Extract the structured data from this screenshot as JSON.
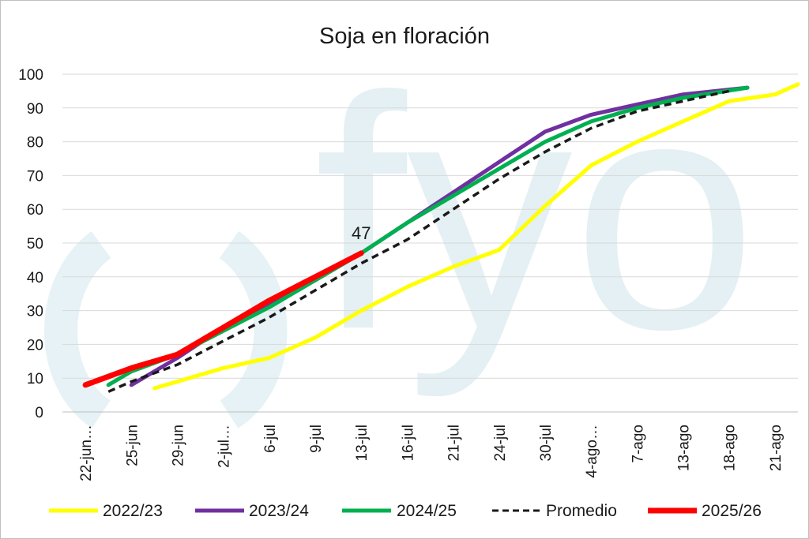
{
  "chart_data": {
    "type": "line",
    "title": "Soja en floración",
    "categories": [
      "22-jun…",
      "25-jun",
      "29-jun",
      "2-jul…",
      "6-jul",
      "9-jul",
      "13-jul",
      "16-jul",
      "21-jul",
      "24-jul",
      "30-jul",
      "4-ago…",
      "7-ago",
      "13-ago",
      "18-ago",
      "21-ago"
    ],
    "ylim": [
      0,
      100
    ],
    "yticks": [
      0,
      10,
      20,
      30,
      40,
      50,
      60,
      70,
      80,
      90,
      100
    ],
    "grid": "horizontal",
    "legend_position": "bottom",
    "watermark": "fyo",
    "series": [
      {
        "name": "2022/23",
        "color": "#FFFF00",
        "style": "solid",
        "points": [
          [
            1.5,
            7
          ],
          [
            2,
            9
          ],
          [
            3,
            13
          ],
          [
            4,
            16
          ],
          [
            5,
            22
          ],
          [
            6,
            30
          ],
          [
            7,
            37
          ],
          [
            8,
            43
          ],
          [
            9,
            48
          ],
          [
            10,
            61
          ],
          [
            11,
            73
          ],
          [
            12,
            80
          ],
          [
            13,
            86
          ],
          [
            14,
            92
          ],
          [
            15,
            94
          ],
          [
            15.5,
            97
          ]
        ]
      },
      {
        "name": "2023/24",
        "color": "#7030A0",
        "style": "solid",
        "points": [
          [
            1,
            8
          ],
          [
            2,
            16
          ],
          [
            3,
            25
          ],
          [
            4,
            32
          ],
          [
            5,
            39
          ],
          [
            6,
            47
          ],
          [
            7,
            56
          ],
          [
            8,
            65
          ],
          [
            9,
            74
          ],
          [
            10,
            83
          ],
          [
            11,
            88
          ],
          [
            12,
            91
          ],
          [
            13,
            94
          ],
          [
            14.4,
            96
          ]
        ]
      },
      {
        "name": "2024/25",
        "color": "#00B050",
        "style": "solid",
        "points": [
          [
            0.5,
            8
          ],
          [
            1,
            12
          ],
          [
            2,
            17
          ],
          [
            3,
            24
          ],
          [
            4,
            31
          ],
          [
            5,
            39
          ],
          [
            6,
            47
          ],
          [
            7,
            56
          ],
          [
            8,
            64
          ],
          [
            9,
            72
          ],
          [
            10,
            80
          ],
          [
            11,
            86
          ],
          [
            12,
            90
          ],
          [
            13,
            93
          ],
          [
            14.4,
            96
          ]
        ]
      },
      {
        "name": "Promedio",
        "color": "#1a1a1a",
        "style": "dashed",
        "points": [
          [
            0.5,
            6
          ],
          [
            1,
            9
          ],
          [
            2,
            14
          ],
          [
            3,
            21
          ],
          [
            4,
            28
          ],
          [
            5,
            36
          ],
          [
            6,
            44
          ],
          [
            7,
            51
          ],
          [
            8,
            60
          ],
          [
            9,
            69
          ],
          [
            10,
            77
          ],
          [
            11,
            84
          ],
          [
            12,
            89
          ],
          [
            13,
            92
          ],
          [
            14,
            95
          ]
        ]
      },
      {
        "name": "2025/26",
        "color": "#FF0000",
        "style": "solid",
        "points": [
          [
            0,
            8
          ],
          [
            1,
            13
          ],
          [
            2,
            17
          ],
          [
            3,
            25
          ],
          [
            4,
            33
          ],
          [
            5,
            40
          ],
          [
            6,
            47
          ]
        ]
      }
    ],
    "annotations": [
      {
        "series": "2025/26",
        "text": "47"
      }
    ]
  }
}
